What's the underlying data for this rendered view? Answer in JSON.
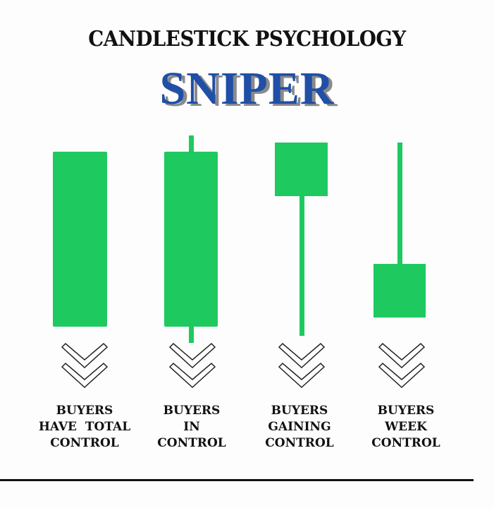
{
  "header": {
    "title": "CANDLESTICK PSYCHOLOGY",
    "brand": "SNIPER"
  },
  "colors": {
    "candle": "#1ec95f",
    "brand": "#1f4fa6",
    "brand_shadow": "#8a8a8a"
  },
  "candles": [
    {
      "label_lines": [
        "BUYERS",
        "HAVE  TOTAL",
        "CONTROL"
      ]
    },
    {
      "label_lines": [
        "BUYERS",
        "IN",
        "CONTROL"
      ]
    },
    {
      "label_lines": [
        "BUYERS",
        "GAINING",
        "CONTROL"
      ]
    },
    {
      "label_lines": [
        "BUYERS",
        "WEEK",
        "CONTROL"
      ]
    }
  ],
  "icons": {
    "arrow": "double-chevron-down-icon"
  }
}
